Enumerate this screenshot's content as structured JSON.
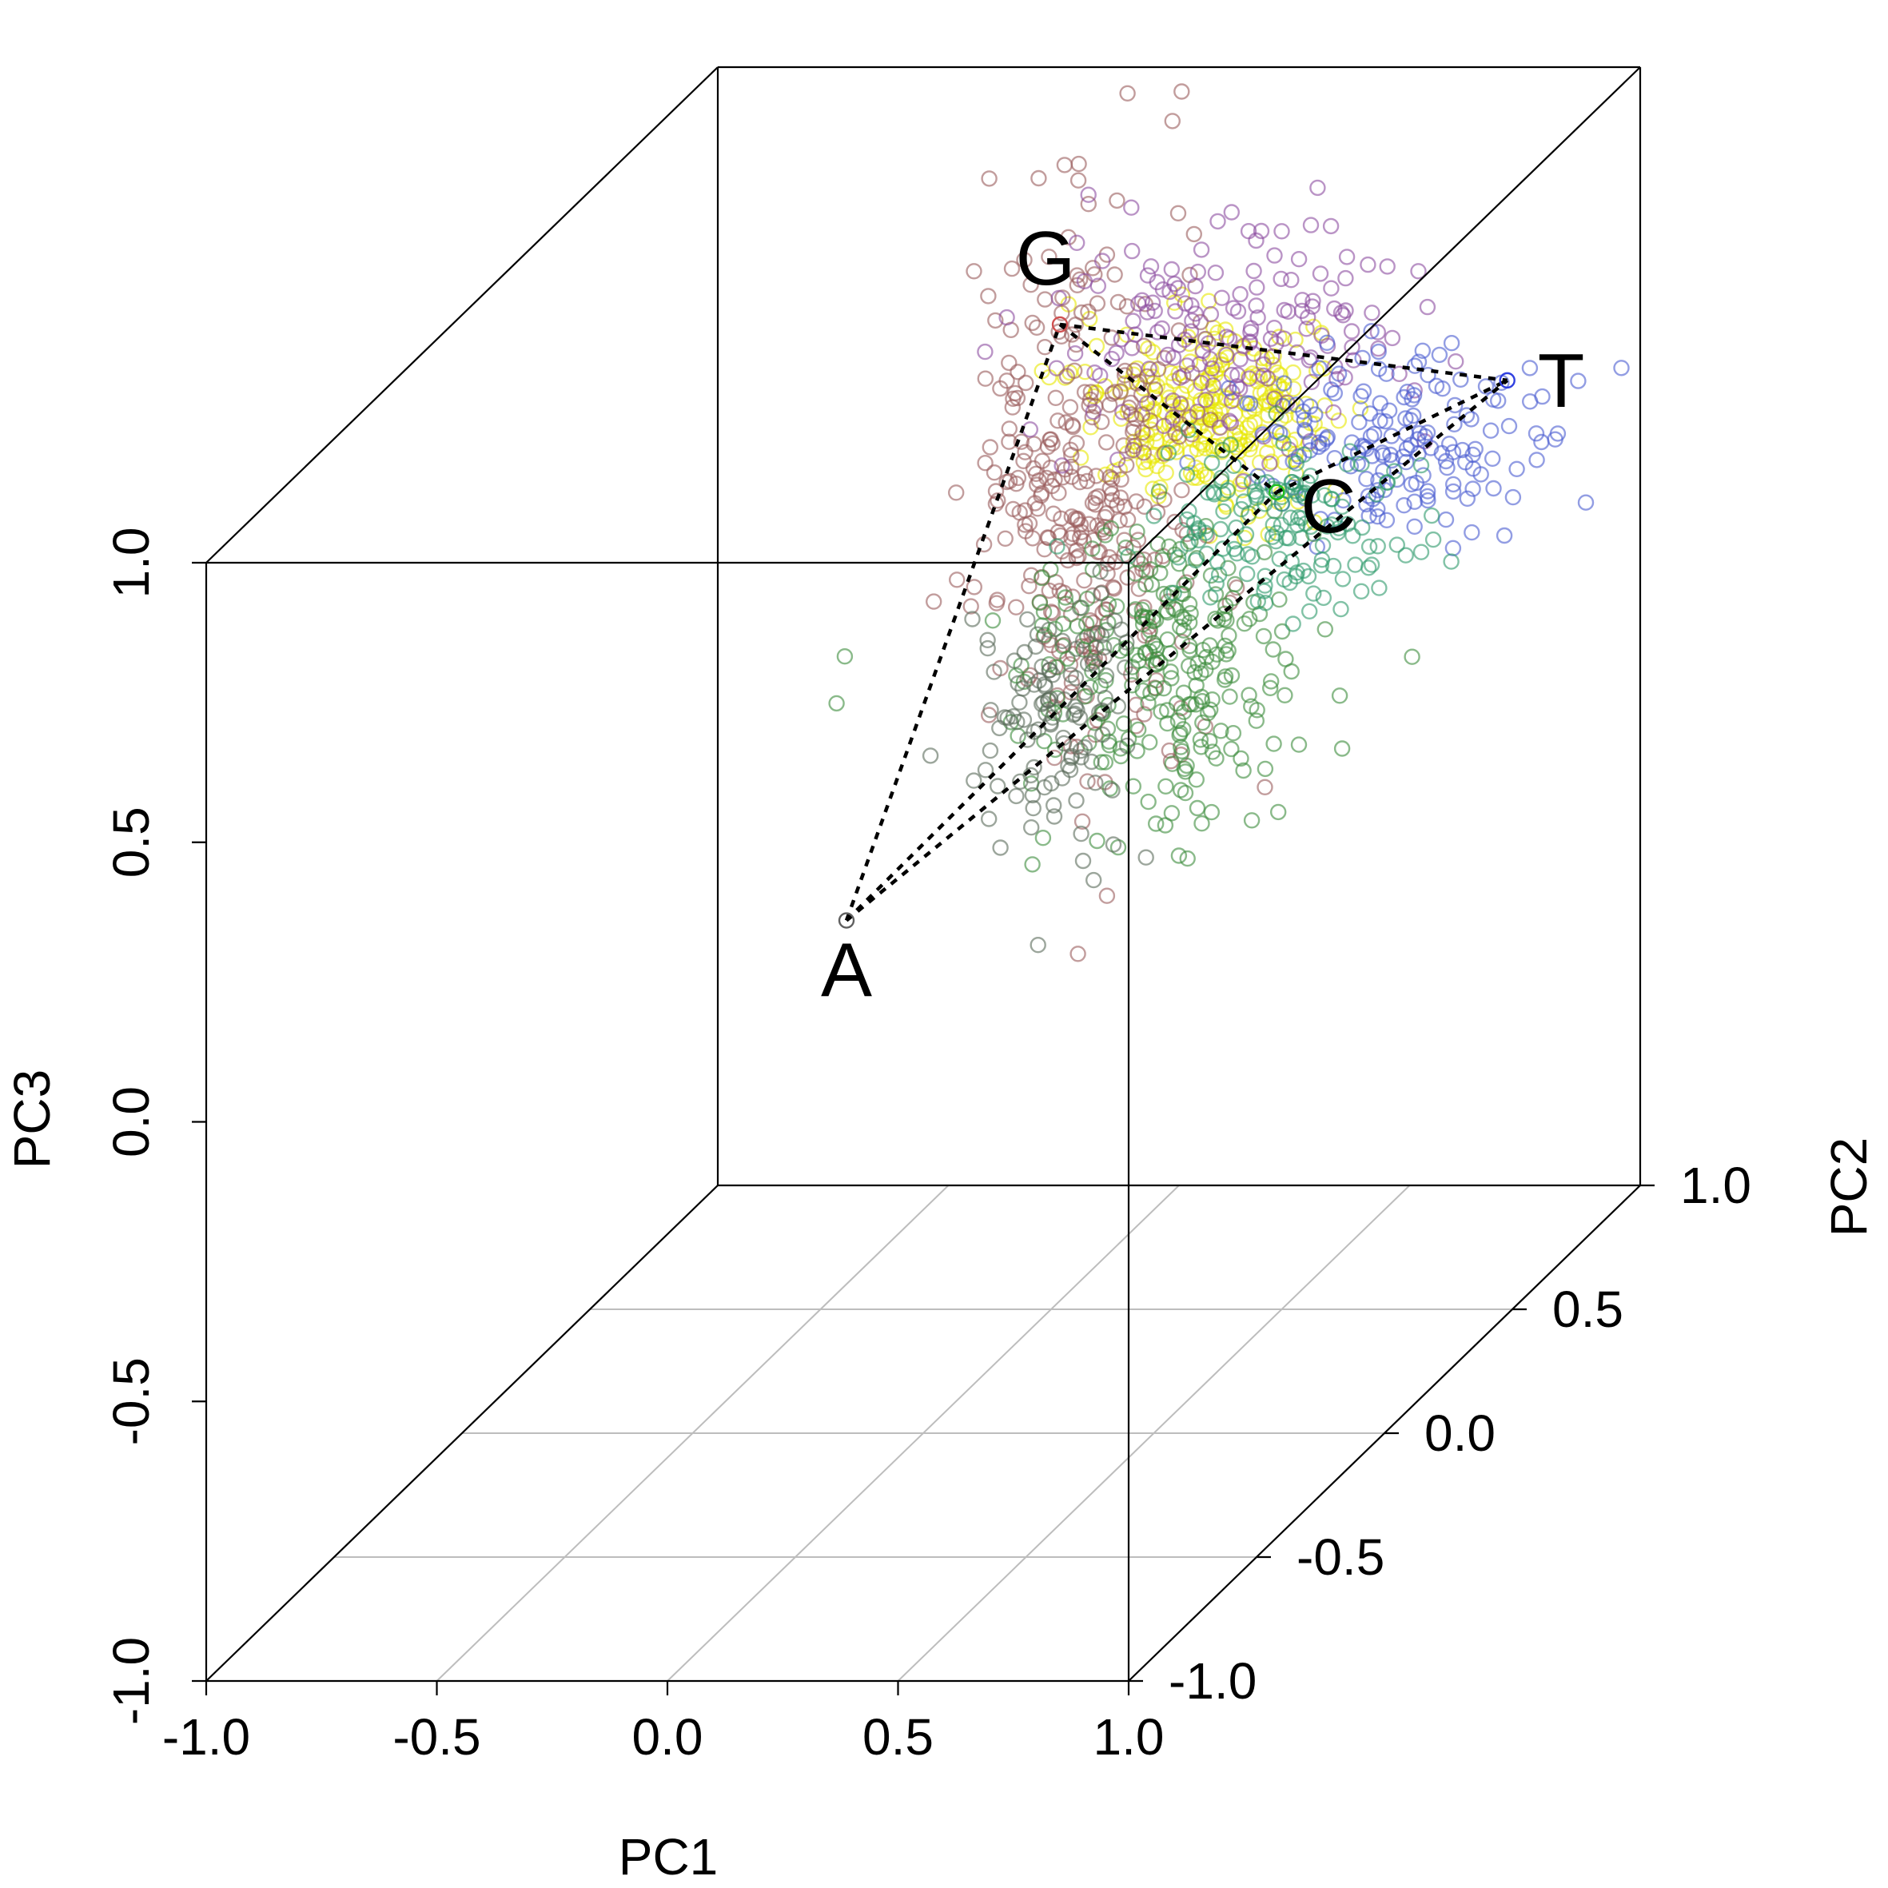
{
  "chart_data": {
    "type": "scatter",
    "projection": "3d",
    "title": "",
    "x_axis": {
      "label": "PC1",
      "range": [
        -1.0,
        1.0
      ],
      "ticks": [
        -1.0,
        -0.5,
        0.0,
        0.5,
        1.0
      ],
      "tick_labels": [
        "-1.0",
        "-0.5",
        "0.0",
        "0.5",
        "1.0"
      ]
    },
    "y_axis": {
      "label": "PC2",
      "range": [
        -1.0,
        1.0
      ],
      "ticks": [
        -1.0,
        -0.5,
        0.0,
        0.5,
        1.0
      ],
      "tick_labels": [
        "-1.0",
        "-0.5",
        "0.0",
        "0.5",
        "1.0"
      ]
    },
    "z_axis": {
      "label": "PC3",
      "range": [
        -1.0,
        1.0
      ],
      "ticks": [
        -1.0,
        -0.5,
        0.0,
        0.5,
        1.0
      ],
      "tick_labels": [
        "-1.0",
        "-0.5",
        "0.0",
        "0.5",
        "1.0"
      ]
    },
    "grid": "floor",
    "marker": "open-circle",
    "vertices": [
      {
        "label": "A",
        "pc1": 0.0,
        "pc2": -0.3,
        "pc3": 0.05,
        "color": "#606060"
      },
      {
        "label": "G",
        "pc1": 0.13,
        "pc2": 0.3,
        "pc3": 0.85,
        "color": "#d05050"
      },
      {
        "label": "T",
        "pc1": 1.1,
        "pc2": 0.3,
        "pc3": 0.75,
        "color": "#3040e0"
      },
      {
        "label": "C",
        "pc1": 0.6,
        "pc2": 0.3,
        "pc3": 0.55,
        "color": "#20c020"
      }
    ],
    "edges": [
      [
        "A",
        "G"
      ],
      [
        "A",
        "T"
      ],
      [
        "A",
        "C"
      ],
      [
        "G",
        "T"
      ],
      [
        "G",
        "C"
      ],
      [
        "C",
        "T"
      ]
    ],
    "point_groups": [
      {
        "color": "#e8e800",
        "center": [
          0.47,
          0.3,
          0.69
        ],
        "spread": [
          0.13,
          0.05,
          0.08
        ],
        "count": 260
      },
      {
        "color": "#9a5c5c",
        "center": [
          0.2,
          0.3,
          0.55
        ],
        "spread": [
          0.12,
          0.05,
          0.25
        ],
        "count": 330
      },
      {
        "color": "#8c4ca0",
        "center": [
          0.5,
          0.3,
          0.83
        ],
        "spread": [
          0.18,
          0.05,
          0.1
        ],
        "count": 170
      },
      {
        "color": "#4a5cd0",
        "center": [
          0.85,
          0.3,
          0.65
        ],
        "spread": [
          0.16,
          0.05,
          0.08
        ],
        "count": 160
      },
      {
        "color": "#3c8c3c",
        "center": [
          0.35,
          0.3,
          0.25
        ],
        "spread": [
          0.16,
          0.05,
          0.13
        ],
        "count": 260
      },
      {
        "color": "#2d9a6a",
        "center": [
          0.6,
          0.3,
          0.48
        ],
        "spread": [
          0.14,
          0.05,
          0.08
        ],
        "count": 140
      },
      {
        "color": "#5a6a5a",
        "center": [
          0.12,
          0.3,
          0.14
        ],
        "spread": [
          0.08,
          0.05,
          0.12
        ],
        "count": 110
      }
    ]
  }
}
